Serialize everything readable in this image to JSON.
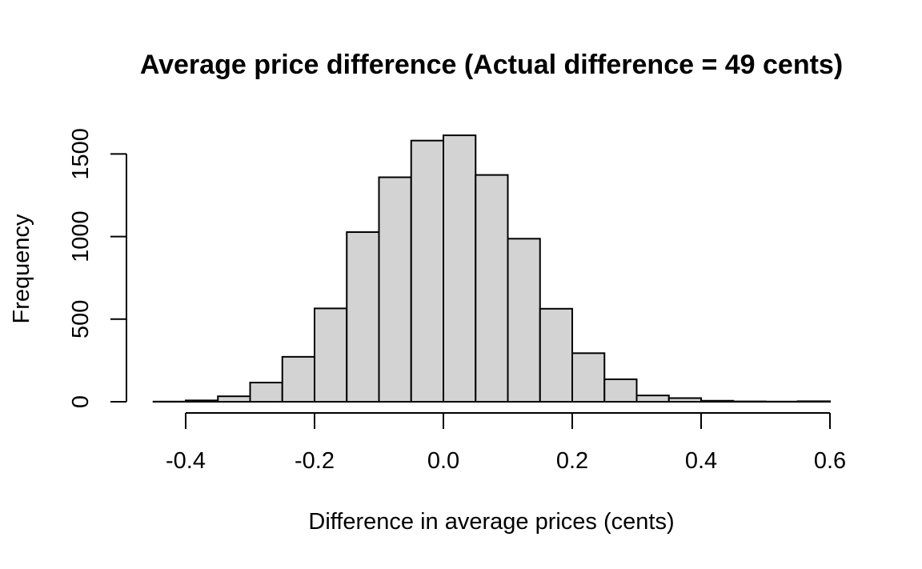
{
  "chart_data": {
    "type": "bar",
    "title": "Average price difference (Actual difference =  49 cents)",
    "xlabel": "Difference in average prices (cents)",
    "ylabel": "Frequency",
    "bin_edges": [
      -0.45,
      -0.4,
      -0.35,
      -0.3,
      -0.25,
      -0.2,
      -0.15,
      -0.1,
      -0.05,
      0.0,
      0.05,
      0.1,
      0.15,
      0.2,
      0.25,
      0.3,
      0.35,
      0.4,
      0.45,
      0.5,
      0.55,
      0.6
    ],
    "values": [
      1,
      8,
      33,
      116,
      272,
      565,
      1027,
      1359,
      1581,
      1613,
      1373,
      987,
      563,
      294,
      136,
      38,
      22,
      6,
      2,
      1,
      3
    ],
    "xlim": [
      -0.45,
      0.6
    ],
    "ylim": [
      0,
      1613
    ],
    "xticks": [
      -0.4,
      -0.2,
      0.0,
      0.2,
      0.4,
      0.6
    ],
    "xtick_labels": [
      "-0.4",
      "-0.2",
      "0.0",
      "0.2",
      "0.4",
      "0.6"
    ],
    "yticks": [
      0,
      500,
      1000,
      1500
    ],
    "ytick_labels": [
      "0",
      "500",
      "1000",
      "1500"
    ],
    "grid": false,
    "colors": {
      "bar_fill": "#d3d3d3",
      "bar_stroke": "#000000"
    }
  }
}
